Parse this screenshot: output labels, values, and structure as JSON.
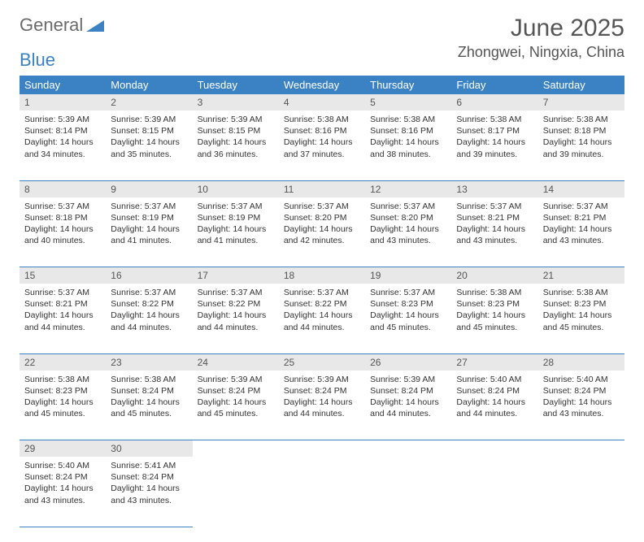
{
  "logo": {
    "text1": "General",
    "text2": "Blue"
  },
  "title": "June 2025",
  "location": "Zhongwei, Ningxia, China",
  "style": {
    "header_bg": "#3b82c4",
    "header_fg": "#ffffff",
    "daynum_bg": "#e8e8e8",
    "border_color": "#3b82c4",
    "page_bg": "#ffffff",
    "text_color": "#333333",
    "title_color": "#555555",
    "body_fontsize": 10.5,
    "header_fontsize": 13,
    "title_fontsize": 30
  },
  "weekdays": [
    "Sunday",
    "Monday",
    "Tuesday",
    "Wednesday",
    "Thursday",
    "Friday",
    "Saturday"
  ],
  "weeks": [
    {
      "nums": [
        "1",
        "2",
        "3",
        "4",
        "5",
        "6",
        "7"
      ],
      "days": [
        {
          "sunrise": "Sunrise: 5:39 AM",
          "sunset": "Sunset: 8:14 PM",
          "day1": "Daylight: 14 hours",
          "day2": "and 34 minutes."
        },
        {
          "sunrise": "Sunrise: 5:39 AM",
          "sunset": "Sunset: 8:15 PM",
          "day1": "Daylight: 14 hours",
          "day2": "and 35 minutes."
        },
        {
          "sunrise": "Sunrise: 5:39 AM",
          "sunset": "Sunset: 8:15 PM",
          "day1": "Daylight: 14 hours",
          "day2": "and 36 minutes."
        },
        {
          "sunrise": "Sunrise: 5:38 AM",
          "sunset": "Sunset: 8:16 PM",
          "day1": "Daylight: 14 hours",
          "day2": "and 37 minutes."
        },
        {
          "sunrise": "Sunrise: 5:38 AM",
          "sunset": "Sunset: 8:16 PM",
          "day1": "Daylight: 14 hours",
          "day2": "and 38 minutes."
        },
        {
          "sunrise": "Sunrise: 5:38 AM",
          "sunset": "Sunset: 8:17 PM",
          "day1": "Daylight: 14 hours",
          "day2": "and 39 minutes."
        },
        {
          "sunrise": "Sunrise: 5:38 AM",
          "sunset": "Sunset: 8:18 PM",
          "day1": "Daylight: 14 hours",
          "day2": "and 39 minutes."
        }
      ]
    },
    {
      "nums": [
        "8",
        "9",
        "10",
        "11",
        "12",
        "13",
        "14"
      ],
      "days": [
        {
          "sunrise": "Sunrise: 5:37 AM",
          "sunset": "Sunset: 8:18 PM",
          "day1": "Daylight: 14 hours",
          "day2": "and 40 minutes."
        },
        {
          "sunrise": "Sunrise: 5:37 AM",
          "sunset": "Sunset: 8:19 PM",
          "day1": "Daylight: 14 hours",
          "day2": "and 41 minutes."
        },
        {
          "sunrise": "Sunrise: 5:37 AM",
          "sunset": "Sunset: 8:19 PM",
          "day1": "Daylight: 14 hours",
          "day2": "and 41 minutes."
        },
        {
          "sunrise": "Sunrise: 5:37 AM",
          "sunset": "Sunset: 8:20 PM",
          "day1": "Daylight: 14 hours",
          "day2": "and 42 minutes."
        },
        {
          "sunrise": "Sunrise: 5:37 AM",
          "sunset": "Sunset: 8:20 PM",
          "day1": "Daylight: 14 hours",
          "day2": "and 43 minutes."
        },
        {
          "sunrise": "Sunrise: 5:37 AM",
          "sunset": "Sunset: 8:21 PM",
          "day1": "Daylight: 14 hours",
          "day2": "and 43 minutes."
        },
        {
          "sunrise": "Sunrise: 5:37 AM",
          "sunset": "Sunset: 8:21 PM",
          "day1": "Daylight: 14 hours",
          "day2": "and 43 minutes."
        }
      ]
    },
    {
      "nums": [
        "15",
        "16",
        "17",
        "18",
        "19",
        "20",
        "21"
      ],
      "days": [
        {
          "sunrise": "Sunrise: 5:37 AM",
          "sunset": "Sunset: 8:21 PM",
          "day1": "Daylight: 14 hours",
          "day2": "and 44 minutes."
        },
        {
          "sunrise": "Sunrise: 5:37 AM",
          "sunset": "Sunset: 8:22 PM",
          "day1": "Daylight: 14 hours",
          "day2": "and 44 minutes."
        },
        {
          "sunrise": "Sunrise: 5:37 AM",
          "sunset": "Sunset: 8:22 PM",
          "day1": "Daylight: 14 hours",
          "day2": "and 44 minutes."
        },
        {
          "sunrise": "Sunrise: 5:37 AM",
          "sunset": "Sunset: 8:22 PM",
          "day1": "Daylight: 14 hours",
          "day2": "and 44 minutes."
        },
        {
          "sunrise": "Sunrise: 5:37 AM",
          "sunset": "Sunset: 8:23 PM",
          "day1": "Daylight: 14 hours",
          "day2": "and 45 minutes."
        },
        {
          "sunrise": "Sunrise: 5:38 AM",
          "sunset": "Sunset: 8:23 PM",
          "day1": "Daylight: 14 hours",
          "day2": "and 45 minutes."
        },
        {
          "sunrise": "Sunrise: 5:38 AM",
          "sunset": "Sunset: 8:23 PM",
          "day1": "Daylight: 14 hours",
          "day2": "and 45 minutes."
        }
      ]
    },
    {
      "nums": [
        "22",
        "23",
        "24",
        "25",
        "26",
        "27",
        "28"
      ],
      "days": [
        {
          "sunrise": "Sunrise: 5:38 AM",
          "sunset": "Sunset: 8:23 PM",
          "day1": "Daylight: 14 hours",
          "day2": "and 45 minutes."
        },
        {
          "sunrise": "Sunrise: 5:38 AM",
          "sunset": "Sunset: 8:24 PM",
          "day1": "Daylight: 14 hours",
          "day2": "and 45 minutes."
        },
        {
          "sunrise": "Sunrise: 5:39 AM",
          "sunset": "Sunset: 8:24 PM",
          "day1": "Daylight: 14 hours",
          "day2": "and 45 minutes."
        },
        {
          "sunrise": "Sunrise: 5:39 AM",
          "sunset": "Sunset: 8:24 PM",
          "day1": "Daylight: 14 hours",
          "day2": "and 44 minutes."
        },
        {
          "sunrise": "Sunrise: 5:39 AM",
          "sunset": "Sunset: 8:24 PM",
          "day1": "Daylight: 14 hours",
          "day2": "and 44 minutes."
        },
        {
          "sunrise": "Sunrise: 5:40 AM",
          "sunset": "Sunset: 8:24 PM",
          "day1": "Daylight: 14 hours",
          "day2": "and 44 minutes."
        },
        {
          "sunrise": "Sunrise: 5:40 AM",
          "sunset": "Sunset: 8:24 PM",
          "day1": "Daylight: 14 hours",
          "day2": "and 43 minutes."
        }
      ]
    },
    {
      "nums": [
        "29",
        "30",
        "",
        "",
        "",
        "",
        ""
      ],
      "days": [
        {
          "sunrise": "Sunrise: 5:40 AM",
          "sunset": "Sunset: 8:24 PM",
          "day1": "Daylight: 14 hours",
          "day2": "and 43 minutes."
        },
        {
          "sunrise": "Sunrise: 5:41 AM",
          "sunset": "Sunset: 8:24 PM",
          "day1": "Daylight: 14 hours",
          "day2": "and 43 minutes."
        },
        null,
        null,
        null,
        null,
        null
      ]
    }
  ]
}
